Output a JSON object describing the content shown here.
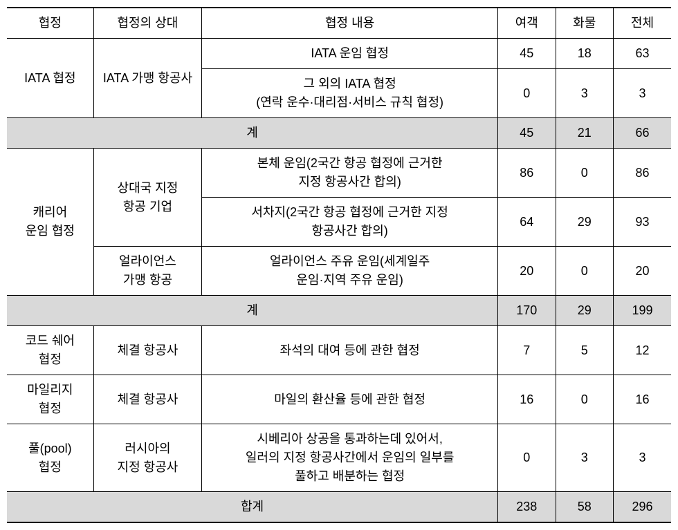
{
  "headers": {
    "agreement": "협정",
    "partner": "협정의 상대",
    "content": "협정 내용",
    "passenger": "여객",
    "cargo": "화물",
    "total": "전체"
  },
  "iata": {
    "agreement": "IATA 협정",
    "partner": "IATA 가맹 항공사",
    "row1": {
      "content": "IATA 운임 협정",
      "passenger": "45",
      "cargo": "18",
      "total": "63"
    },
    "row2": {
      "content": "그 외의 IATA 협정\n(연락 운수·대리점·서비스 규칙 협정)",
      "passenger": "0",
      "cargo": "3",
      "total": "3"
    },
    "subtotal": {
      "label": "계",
      "passenger": "45",
      "cargo": "21",
      "total": "66"
    }
  },
  "carrier": {
    "agreement": "캐리어\n운임 협정",
    "partner1": "상대국 지정\n항공 기업",
    "partner2": "얼라이언스\n가맹 항공",
    "row1": {
      "content": "본체 운임(2국간 항공 협정에 근거한\n지정 항공사간 합의)",
      "passenger": "86",
      "cargo": "0",
      "total": "86"
    },
    "row2": {
      "content": "서차지(2국간 항공 협정에 근거한 지정\n항공사간 합의)",
      "passenger": "64",
      "cargo": "29",
      "total": "93"
    },
    "row3": {
      "content": "얼라이언스 주유 운임(세계일주\n운임·지역 주유 운임)",
      "passenger": "20",
      "cargo": "0",
      "total": "20"
    },
    "subtotal": {
      "label": "계",
      "passenger": "170",
      "cargo": "29",
      "total": "199"
    }
  },
  "codeshare": {
    "agreement": "코드 쉐어\n협정",
    "partner": "체결 항공사",
    "content": "좌석의 대여 등에 관한 협정",
    "passenger": "7",
    "cargo": "5",
    "total": "12"
  },
  "mileage": {
    "agreement": "마일리지\n협정",
    "partner": "체결 항공사",
    "content": "마일의 환산율 등에 관한 협정",
    "passenger": "16",
    "cargo": "0",
    "total": "16"
  },
  "pool": {
    "agreement": "풀(pool)\n협정",
    "partner": "러시아의\n지정 항공사",
    "content": "시베리아 상공을 통과하는데 있어서,\n일러의 지정 항공사간에서 운임의 일부를\n풀하고 배분하는 협정",
    "passenger": "0",
    "cargo": "3",
    "total": "3"
  },
  "grandtotal": {
    "label": "합계",
    "passenger": "238",
    "cargo": "58",
    "total": "296"
  }
}
